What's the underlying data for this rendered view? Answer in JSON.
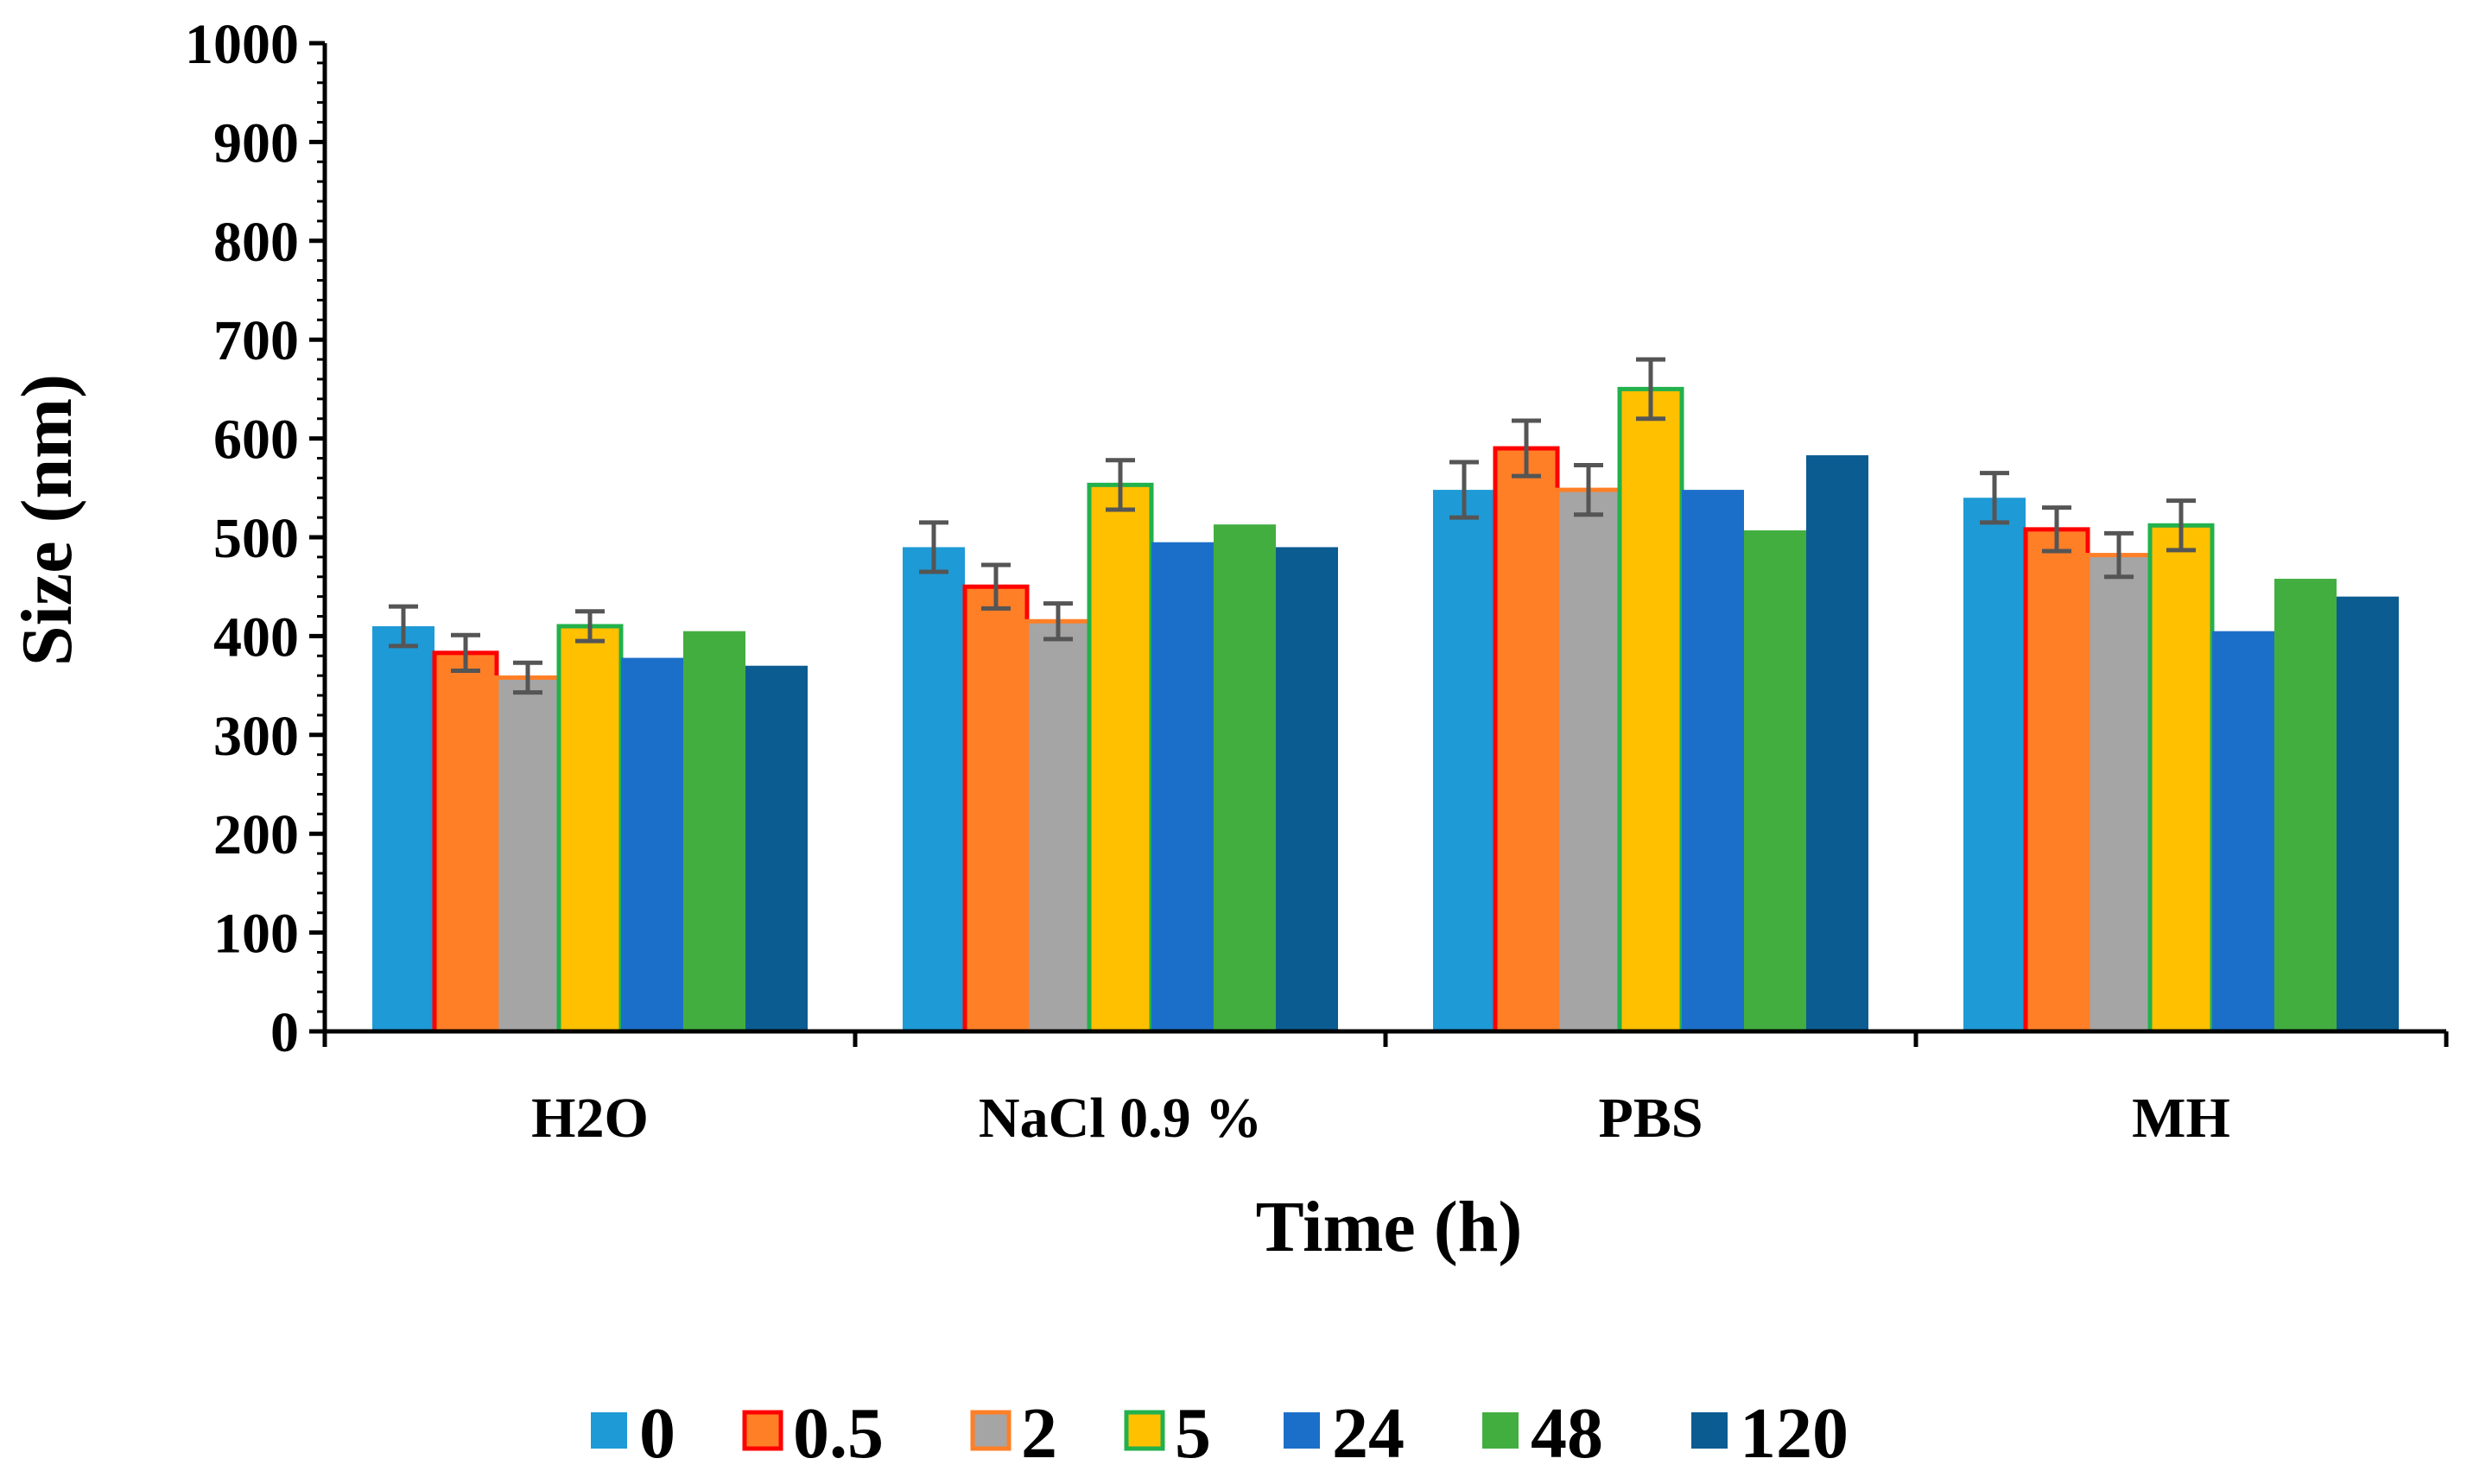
{
  "chart_data": {
    "type": "bar",
    "xlabel": "Time (h)",
    "ylabel": "Size (nm)",
    "ylim": [
      0,
      1000
    ],
    "y_tick_values": [
      0,
      100,
      200,
      300,
      400,
      500,
      600,
      700,
      800,
      900,
      1000
    ],
    "y_tick_labels": [
      "0",
      "100",
      "200",
      "300",
      "400",
      "500",
      "600",
      "700",
      "800",
      "900",
      "1000"
    ],
    "categories": [
      "H2O",
      "NaCl 0.9 %",
      "PBS",
      "MH"
    ],
    "series": [
      {
        "name": "0",
        "color": "#1E9AD6",
        "values": [
          410,
          490,
          548,
          540
        ],
        "errors": [
          20,
          25,
          28,
          25
        ]
      },
      {
        "name": "0.5",
        "color": "#FF7F27",
        "outline": "#FF0000",
        "values": [
          383,
          450,
          590,
          508
        ],
        "errors": [
          18,
          22,
          28,
          22
        ]
      },
      {
        "name": "2",
        "color": "#A5A5A5",
        "outline": "#FF7F27",
        "values": [
          358,
          415,
          548,
          482
        ],
        "errors": [
          15,
          18,
          25,
          22
        ]
      },
      {
        "name": "5",
        "color": "#FFC000",
        "outline": "#22B14C",
        "values": [
          410,
          553,
          650,
          512
        ],
        "errors": [
          15,
          25,
          30,
          25
        ]
      },
      {
        "name": "24",
        "color": "#1C6FC9",
        "values": [
          378,
          495,
          548,
          405
        ]
      },
      {
        "name": "48",
        "color": "#43AE40",
        "values": [
          405,
          513,
          507,
          458
        ]
      },
      {
        "name": "120",
        "color": "#0B5C91",
        "values": [
          370,
          490,
          583,
          440
        ]
      }
    ],
    "error_bar_color": "#555555",
    "grid": false,
    "legend": "bottom"
  }
}
